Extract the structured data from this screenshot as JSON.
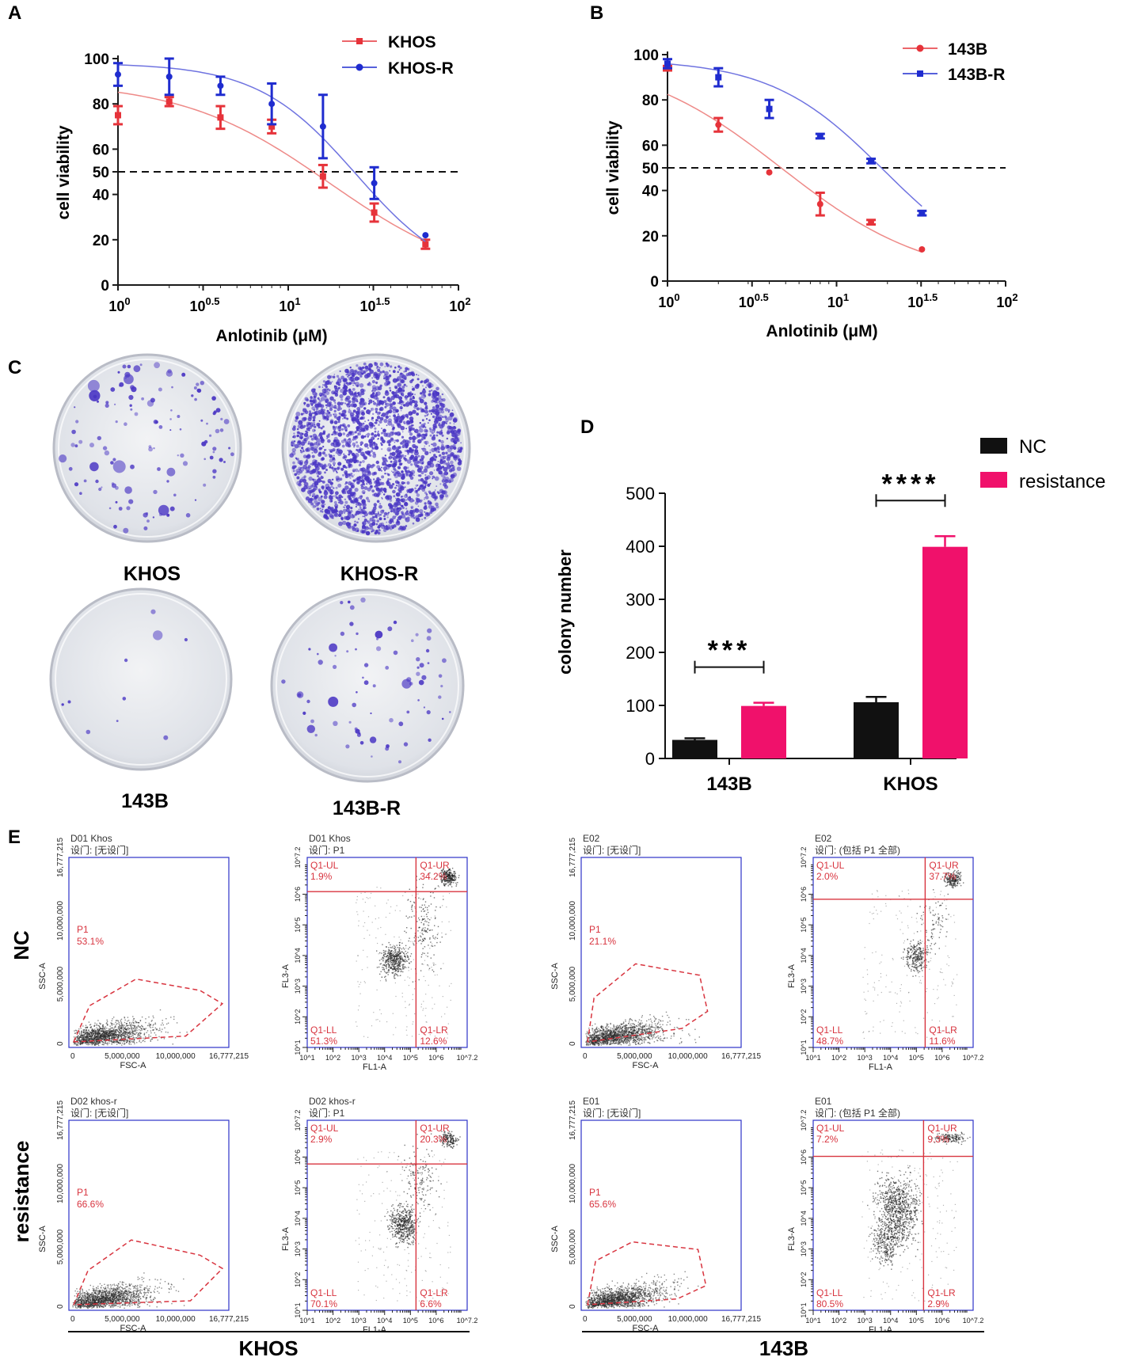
{
  "colors": {
    "red": "#e6333a",
    "red_fit": "#ee8a88",
    "blue": "#1f2ccf",
    "blue_fit": "#6f73e0",
    "pink": "#f0116b",
    "black": "#111111",
    "gate": "#d8343f",
    "flow_axis": "#2d33c8",
    "colony": "#4a36c4"
  },
  "chart_data": [
    {
      "panel": "A",
      "type": "line",
      "xscale": "log10",
      "xlabel": "Anlotinib (μM)",
      "ylabel": "cell viability",
      "xlim": [
        1,
        100
      ],
      "ylim": [
        0,
        100
      ],
      "ylim_extra_tick": 50,
      "x_tick_base": "10",
      "x_tick_exps": [
        "0",
        "0.5",
        "1",
        "1.5",
        "2"
      ],
      "y_ticks": [
        "0",
        "20",
        "40",
        "50",
        "60",
        "80",
        "100"
      ],
      "threshold": 50,
      "series": [
        {
          "name": "KHOS",
          "color": "#e6333a",
          "fit_color": "#ee8a88",
          "marker": "square",
          "x": [
            1,
            2,
            4,
            8,
            16,
            32,
            64
          ],
          "y": [
            75,
            81,
            74,
            70,
            48,
            32,
            18
          ],
          "err": [
            4,
            2,
            5,
            3,
            5,
            4,
            2
          ],
          "fit": {
            "top": 90,
            "bottom": 0,
            "ic50": 17.5,
            "hill": 1.0
          }
        },
        {
          "name": "KHOS-R",
          "color": "#1f2ccf",
          "fit_color": "#6f73e0",
          "marker": "circle",
          "x": [
            1,
            2,
            4,
            8,
            16,
            32,
            64
          ],
          "y": [
            93,
            92,
            88,
            80,
            70,
            45,
            22
          ],
          "err": [
            5,
            8,
            4,
            9,
            14,
            7,
            0
          ],
          "fit": {
            "top": 98,
            "bottom": 0,
            "ic50": 25,
            "hill": 1.5
          }
        }
      ]
    },
    {
      "panel": "B",
      "type": "line",
      "xscale": "log10",
      "xlabel": "Anlotinib (μM)",
      "ylabel": "cell viability",
      "xlim": [
        1,
        100
      ],
      "ylim": [
        0,
        100
      ],
      "ylim_extra_tick": 50,
      "x_tick_base": "10",
      "x_tick_exps": [
        "0",
        "0.5",
        "1",
        "1.5",
        "2"
      ],
      "y_ticks": [
        "0",
        "20",
        "40",
        "50",
        "60",
        "80",
        "100"
      ],
      "threshold": 50,
      "series": [
        {
          "name": "143B",
          "color": "#e6333a",
          "fit_color": "#ee8a88",
          "marker": "circle",
          "x": [
            1,
            2,
            4,
            8,
            16,
            32
          ],
          "y": [
            94,
            69,
            48,
            34,
            26,
            14
          ],
          "err": [
            1,
            3,
            0,
            5,
            1,
            0
          ],
          "fit": {
            "top": 100,
            "bottom": 0,
            "ic50": 4.7,
            "hill": 1.0
          }
        },
        {
          "name": "143B-R",
          "color": "#1f2ccf",
          "fit_color": "#6f73e0",
          "marker": "square",
          "x": [
            1,
            2,
            4,
            8,
            16,
            32
          ],
          "y": [
            96,
            90,
            76,
            64,
            53,
            30
          ],
          "err": [
            2,
            4,
            4,
            1,
            1,
            1
          ],
          "fit": {
            "top": 98,
            "bottom": 0,
            "ic50": 19,
            "hill": 1.3
          }
        }
      ]
    },
    {
      "panel": "D",
      "type": "bar",
      "ylabel": "colony number",
      "ylim": [
        0,
        500
      ],
      "y_ticks": [
        "0",
        "100",
        "200",
        "300",
        "400",
        "500"
      ],
      "categories": [
        "143B",
        "KHOS"
      ],
      "series": [
        {
          "name": "NC",
          "color": "#111111",
          "values": [
            35,
            106
          ],
          "err": [
            3,
            10
          ]
        },
        {
          "name": "resistance",
          "color": "#f0116b",
          "values": [
            99,
            399
          ],
          "err": [
            6,
            20
          ]
        }
      ],
      "significance": [
        "***",
        "****"
      ]
    }
  ],
  "panel_labels": {
    "a": "A",
    "b": "B",
    "c": "C",
    "d": "D",
    "e": "E"
  },
  "panel_c": {
    "plates": [
      {
        "label": "KHOS",
        "density": 130
      },
      {
        "label": "KHOS-R",
        "density": 2200
      },
      {
        "label": "143B",
        "density": 10
      },
      {
        "label": "143B-R",
        "density": 80
      }
    ]
  },
  "panel_e": {
    "row_labels": [
      "NC",
      "resistance"
    ],
    "group_labels": [
      "KHOS",
      "143B"
    ],
    "scatter_axes": {
      "x_label": "FSC-A",
      "y_label": "SSC-A",
      "x_ticks": [
        "0",
        "5,000,000",
        "10,000,000",
        "16,777,215"
      ],
      "y_ticks": [
        "0",
        "5,000,000",
        "10,000,000",
        "16,777,215"
      ]
    },
    "quad_axes": {
      "x_label": "FL1-A",
      "y_label": "FL3-A",
      "x_ticks": [
        "10^1",
        "10^2",
        "10^3",
        "10^4",
        "10^5",
        "10^6",
        "10^7.2"
      ],
      "y_ticks": [
        "10^1",
        "10^2",
        "10^3",
        "10^4",
        "10^5",
        "10^6",
        "10^7.2"
      ]
    },
    "plots": [
      {
        "kind": "scatter",
        "sample": "D01 Khos",
        "gate_text": "设门: [无设门]",
        "gate_name": "P1",
        "gate_pct": "53.1%"
      },
      {
        "kind": "quad",
        "sample": "D01 Khos",
        "gate_text": "设门: P1",
        "ul": "Q1-UL",
        "ul_pct": "1.9%",
        "ur": "Q1-UR",
        "ur_pct": "34.2%",
        "ll": "Q1-LL",
        "ll_pct": "51.3%",
        "lr": "Q1-LR",
        "lr_pct": "12.6%"
      },
      {
        "kind": "scatter",
        "sample": "E02",
        "gate_text": "设门: [无设门]",
        "gate_name": "P1",
        "gate_pct": "21.1%"
      },
      {
        "kind": "quad",
        "sample": "E02",
        "gate_text": "设门: (包括 P1 全部)",
        "ul": "Q1-UL",
        "ul_pct": "2.0%",
        "ur": "Q1-UR",
        "ur_pct": "37.7%",
        "ll": "Q1-LL",
        "ll_pct": "48.7%",
        "lr": "Q1-LR",
        "lr_pct": "11.6%"
      },
      {
        "kind": "scatter",
        "sample": "D02 khos-r",
        "gate_text": "设门: [无设门]",
        "gate_name": "P1",
        "gate_pct": "66.6%"
      },
      {
        "kind": "quad",
        "sample": "D02 khos-r",
        "gate_text": "设门: P1",
        "ul": "Q1-UL",
        "ul_pct": "2.9%",
        "ur": "Q1-UR",
        "ur_pct": "20.3%",
        "ll": "Q1-LL",
        "ll_pct": "70.1%",
        "lr": "Q1-LR",
        "lr_pct": "6.6%"
      },
      {
        "kind": "scatter",
        "sample": "E01",
        "gate_text": "设门: [无设门]",
        "gate_name": "P1",
        "gate_pct": "65.6%"
      },
      {
        "kind": "quad",
        "sample": "E01",
        "gate_text": "设门: (包括 P1 全部)",
        "ul": "Q1-UL",
        "ul_pct": "7.2%",
        "ur": "Q1-UR",
        "ur_pct": "9.3%",
        "ll": "Q1-LL",
        "ll_pct": "80.5%",
        "lr": "Q1-LR",
        "lr_pct": "2.9%"
      }
    ]
  }
}
